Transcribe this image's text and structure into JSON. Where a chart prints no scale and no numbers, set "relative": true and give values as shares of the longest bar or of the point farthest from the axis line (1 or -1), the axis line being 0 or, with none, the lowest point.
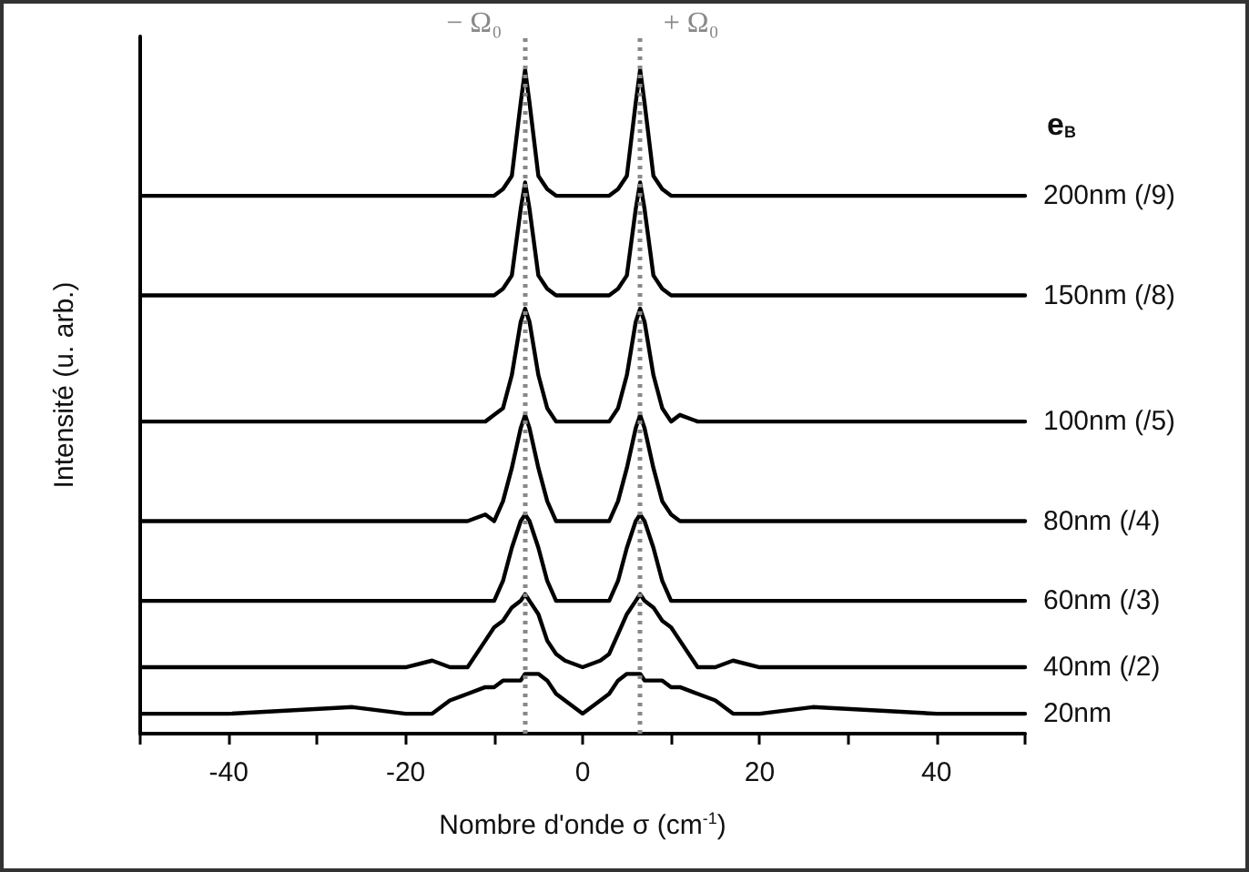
{
  "chart_data": {
    "type": "line",
    "relative": true,
    "xlabel": "Nombre d'onde σ (cm$^{-1}$)",
    "ylabel": "Intensité (u. arb.)",
    "legend_title": "e$_{B}$",
    "x": [
      -50,
      -40,
      -26,
      -20,
      -17,
      -15,
      -13,
      -11,
      -10,
      -9,
      -8,
      -7,
      -6.5,
      -6,
      -5,
      -4,
      -3,
      -2,
      0,
      2,
      3,
      4,
      5,
      6,
      6.5,
      7,
      8,
      9,
      10,
      11,
      13,
      15,
      17,
      20,
      26,
      40,
      50
    ],
    "xlim": [
      -50,
      50
    ],
    "xticks": [
      {
        "value": -50,
        "label": null
      },
      -40,
      {
        "value": -30,
        "label": null
      },
      -20,
      {
        "value": -10,
        "label": null
      },
      0,
      {
        "value": 10,
        "label": null
      },
      20,
      {
        "value": 30,
        "label": null
      },
      40,
      {
        "value": 50,
        "label": null
      }
    ],
    "series": [
      {
        "name": "200nm (/9)",
        "color": "#000000",
        "values": [
          0.81,
          0.81,
          0.81,
          0.81,
          0.81,
          0.81,
          0.81,
          0.81,
          0.81,
          0.82,
          0.84,
          0.95,
          1.0,
          0.95,
          0.84,
          0.82,
          0.81,
          0.81,
          0.81,
          0.81,
          0.81,
          0.82,
          0.84,
          0.95,
          1.0,
          0.95,
          0.84,
          0.82,
          0.81,
          0.81,
          0.81,
          0.81,
          0.81,
          0.81,
          0.81,
          0.81,
          0.81
        ]
      },
      {
        "name": "150nm (/8)",
        "color": "#000000",
        "values": [
          0.66,
          0.66,
          0.66,
          0.66,
          0.66,
          0.66,
          0.66,
          0.66,
          0.66,
          0.67,
          0.69,
          0.79,
          0.83,
          0.79,
          0.69,
          0.67,
          0.66,
          0.66,
          0.66,
          0.66,
          0.66,
          0.67,
          0.69,
          0.79,
          0.83,
          0.79,
          0.69,
          0.67,
          0.66,
          0.66,
          0.66,
          0.66,
          0.66,
          0.66,
          0.66,
          0.66,
          0.66
        ]
      },
      {
        "name": "100nm (/5)",
        "color": "#000000",
        "values": [
          0.47,
          0.47,
          0.47,
          0.47,
          0.47,
          0.47,
          0.47,
          0.47,
          0.48,
          0.49,
          0.54,
          0.62,
          0.64,
          0.62,
          0.54,
          0.49,
          0.47,
          0.47,
          0.47,
          0.47,
          0.47,
          0.49,
          0.54,
          0.62,
          0.64,
          0.62,
          0.54,
          0.49,
          0.47,
          0.48,
          0.47,
          0.47,
          0.47,
          0.47,
          0.47,
          0.47,
          0.47
        ]
      },
      {
        "name": "80nm (/4)",
        "color": "#000000",
        "values": [
          0.32,
          0.32,
          0.32,
          0.32,
          0.32,
          0.32,
          0.32,
          0.33,
          0.32,
          0.35,
          0.4,
          0.46,
          0.48,
          0.46,
          0.4,
          0.35,
          0.32,
          0.32,
          0.32,
          0.32,
          0.32,
          0.35,
          0.4,
          0.46,
          0.48,
          0.46,
          0.4,
          0.35,
          0.33,
          0.32,
          0.32,
          0.32,
          0.32,
          0.32,
          0.32,
          0.32,
          0.32
        ]
      },
      {
        "name": "60nm (/3)",
        "color": "#000000",
        "values": [
          0.2,
          0.2,
          0.2,
          0.2,
          0.2,
          0.2,
          0.2,
          0.2,
          0.2,
          0.23,
          0.28,
          0.32,
          0.33,
          0.32,
          0.28,
          0.23,
          0.2,
          0.2,
          0.2,
          0.2,
          0.2,
          0.23,
          0.28,
          0.32,
          0.33,
          0.32,
          0.28,
          0.23,
          0.2,
          0.2,
          0.2,
          0.2,
          0.2,
          0.2,
          0.2,
          0.2,
          0.2
        ]
      },
      {
        "name": "40nm (/2)",
        "color": "#000000",
        "values": [
          0.1,
          0.1,
          0.1,
          0.1,
          0.11,
          0.1,
          0.1,
          0.14,
          0.16,
          0.17,
          0.19,
          0.2,
          0.21,
          0.2,
          0.18,
          0.14,
          0.12,
          0.11,
          0.1,
          0.11,
          0.12,
          0.15,
          0.18,
          0.2,
          0.21,
          0.2,
          0.19,
          0.17,
          0.16,
          0.14,
          0.1,
          0.1,
          0.11,
          0.1,
          0.1,
          0.1,
          0.1
        ]
      },
      {
        "name": "20nm",
        "color": "#000000",
        "values": [
          0.03,
          0.03,
          0.04,
          0.03,
          0.03,
          0.05,
          0.06,
          0.07,
          0.07,
          0.08,
          0.08,
          0.08,
          0.09,
          0.09,
          0.09,
          0.08,
          0.06,
          0.05,
          0.03,
          0.05,
          0.06,
          0.08,
          0.09,
          0.09,
          0.09,
          0.08,
          0.08,
          0.08,
          0.07,
          0.07,
          0.06,
          0.05,
          0.03,
          0.03,
          0.04,
          0.03,
          0.03
        ]
      }
    ],
    "ref_lines": [
      {
        "axis": "x",
        "value": -6.5,
        "label": "− Ω₀",
        "color": "#888888",
        "line_style": "dotted"
      },
      {
        "axis": "x",
        "value": 6.5,
        "label": "+ Ω₀",
        "color": "#888888",
        "line_style": "dotted"
      }
    ]
  }
}
